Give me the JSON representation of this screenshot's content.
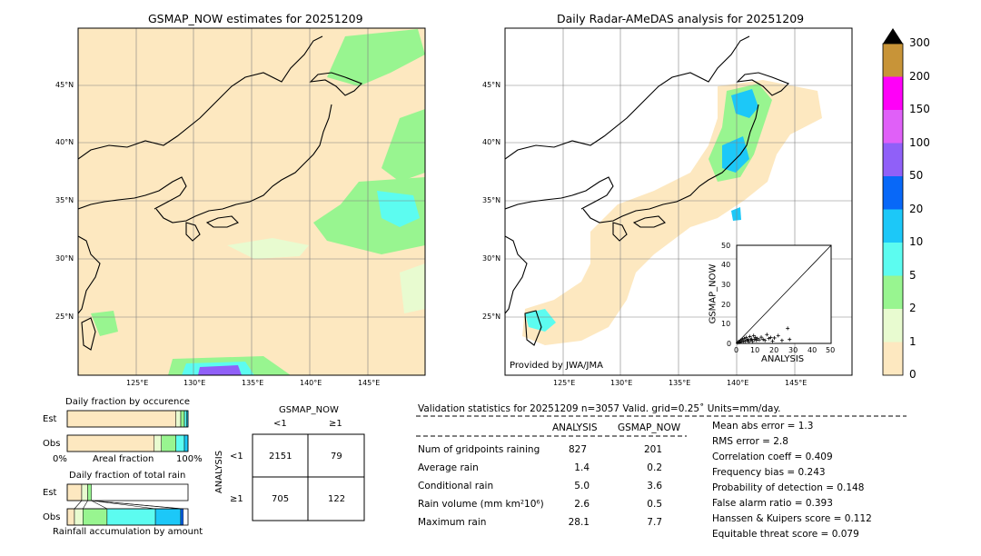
{
  "left_map": {
    "title": "GSMAP_NOW estimates for 20251209",
    "lat_labels": [
      "45°N",
      "40°N",
      "35°N",
      "30°N",
      "25°N"
    ],
    "lon_labels": [
      "125°E",
      "130°E",
      "135°E",
      "140°E",
      "145°E"
    ]
  },
  "right_map": {
    "title": "Daily Radar-AMeDAS analysis for 20251209",
    "lat_labels": [
      "45°N",
      "40°N",
      "35°N",
      "30°N",
      "25°N"
    ],
    "lon_labels": [
      "125°E",
      "130°E",
      "135°E",
      "140°E",
      "145°E"
    ],
    "credit": "Provided by JWA/JMA"
  },
  "colorbar": {
    "ticks": [
      "0",
      "1",
      "2",
      "5",
      "10",
      "20",
      "50",
      "100",
      "150",
      "200",
      "300"
    ],
    "colors": [
      "#fde8c0",
      "#e8fbd0",
      "#98f590",
      "#5cfcf0",
      "#1cc8f8",
      "#0868f8",
      "#9060f8",
      "#e060f8",
      "#ff00f8",
      "#c89438"
    ]
  },
  "scatter": {
    "xlabel": "ANALYSIS",
    "ylabel": "GSMAP_NOW",
    "ticks": [
      "0",
      "10",
      "20",
      "30",
      "40",
      "50"
    ]
  },
  "occurrence": {
    "title": "Daily fraction by occurence",
    "row_est": "Est",
    "row_obs": "Obs",
    "axis_left": "0%",
    "axis_mid": "Areal fraction",
    "axis_right": "100%"
  },
  "total_rain": {
    "title": "Daily fraction of total rain",
    "row_est": "Est",
    "row_obs": "Obs",
    "axis_label": "Rainfall accumulation by amount"
  },
  "contingency": {
    "top_label": "GSMAP_NOW",
    "col_lt": "<1",
    "col_ge": "≥1",
    "side_label": "ANALYSIS",
    "row_lt": "<1",
    "row_ge": "≥1",
    "cells": [
      "2151",
      "79",
      "705",
      "122"
    ]
  },
  "validation": {
    "header": "Validation statistics for 20251209  n=3057 Valid. grid=0.25˚ Units=mm/day.",
    "col_analysis": "ANALYSIS",
    "col_gsmap": "GSMAP_NOW",
    "rows": [
      {
        "label": "Num of gridpoints raining",
        "analysis": "827",
        "gsmap": "201"
      },
      {
        "label": "Average rain",
        "analysis": "1.4",
        "gsmap": "0.2"
      },
      {
        "label": "Conditional rain",
        "analysis": "5.0",
        "gsmap": "3.6"
      },
      {
        "label": "Rain volume (mm km²10⁶)",
        "analysis": "2.6",
        "gsmap": "0.5"
      },
      {
        "label": "Maximum rain",
        "analysis": "28.1",
        "gsmap": "7.7"
      }
    ],
    "scores": [
      "Mean abs error =    1.3",
      "RMS error =    2.8",
      "Correlation coeff =  0.409",
      "Frequency bias =  0.243",
      "Probability of detection =  0.148",
      "False alarm ratio =  0.393",
      "Hanssen & Kuipers score =  0.112",
      "Equitable threat score =  0.079"
    ]
  },
  "chart_data": [
    {
      "type": "table",
      "title": "Validation statistics for 20251209  n=3057 Valid. grid=0.25˚ Units=mm/day.",
      "columns": [
        "ANALYSIS",
        "GSMAP_NOW"
      ],
      "rows": [
        [
          "Num of gridpoints raining",
          827,
          201
        ],
        [
          "Average rain",
          1.4,
          0.2
        ],
        [
          "Conditional rain",
          5.0,
          3.6
        ],
        [
          "Rain volume (mm km²10⁶)",
          2.6,
          0.5
        ],
        [
          "Maximum rain",
          28.1,
          7.7
        ]
      ]
    },
    {
      "type": "table",
      "title": "GSMAP_NOW vs ANALYSIS contingency",
      "columns": [
        "<1",
        "≥1"
      ],
      "rows": [
        [
          "<1",
          2151,
          79
        ],
        [
          "≥1",
          705,
          122
        ]
      ]
    },
    {
      "type": "scatter",
      "xlabel": "ANALYSIS",
      "ylabel": "GSMAP_NOW",
      "xlim": [
        0,
        50
      ],
      "ylim": [
        0,
        50
      ],
      "points": [
        [
          0.5,
          0.3
        ],
        [
          1,
          1
        ],
        [
          1.5,
          0.5
        ],
        [
          2,
          1.5
        ],
        [
          2.5,
          0.8
        ],
        [
          3,
          2
        ],
        [
          3.5,
          1
        ],
        [
          4,
          2.5
        ],
        [
          4.5,
          1.2
        ],
        [
          5,
          3
        ],
        [
          5.5,
          1.5
        ],
        [
          6,
          2
        ],
        [
          6.5,
          0.9
        ],
        [
          7,
          3.5
        ],
        [
          7.5,
          1.8
        ],
        [
          8,
          2.2
        ],
        [
          8.5,
          1
        ],
        [
          9,
          4
        ],
        [
          9.5,
          2
        ],
        [
          10,
          3
        ],
        [
          10.5,
          1.5
        ],
        [
          11,
          2.5
        ],
        [
          12,
          1.8
        ],
        [
          13,
          3.2
        ],
        [
          14,
          2
        ],
        [
          15,
          1.5
        ],
        [
          16,
          4.5
        ],
        [
          17,
          2.5
        ],
        [
          18,
          3
        ],
        [
          19,
          1.2
        ],
        [
          20,
          2.8
        ],
        [
          22,
          4
        ],
        [
          24,
          1.5
        ],
        [
          27,
          7.7
        ],
        [
          28,
          2
        ]
      ]
    },
    {
      "type": "bar",
      "title": "Daily fraction by occurence",
      "categories": [
        "Est",
        "Obs"
      ],
      "series": [
        {
          "values": [
            0.9,
            0.72
          ]
        },
        {
          "values": [
            0.04,
            0.06
          ]
        },
        {
          "values": [
            0.03,
            0.12
          ]
        },
        {
          "values": [
            0.02,
            0.07
          ]
        },
        {
          "values": [
            0.01,
            0.03
          ]
        }
      ]
    },
    {
      "type": "bar",
      "title": "Daily fraction of total rain",
      "categories": [
        "Est",
        "Obs"
      ],
      "series": [
        {
          "values": [
            0.12,
            0.06
          ]
        },
        {
          "values": [
            0.05,
            0.07
          ]
        },
        {
          "values": [
            0.03,
            0.2
          ]
        },
        {
          "values": [
            0,
            0.4
          ]
        },
        {
          "values": [
            0,
            0.21
          ]
        },
        {
          "values": [
            0,
            0.02
          ]
        }
      ]
    }
  ]
}
